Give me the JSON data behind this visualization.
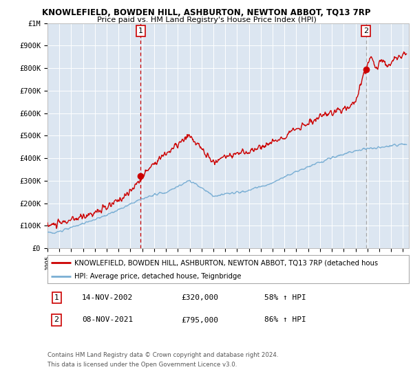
{
  "title": "KNOWLEFIELD, BOWDEN HILL, ASHBURTON, NEWTON ABBOT, TQ13 7RP",
  "subtitle": "Price paid vs. HM Land Registry's House Price Index (HPI)",
  "legend_line1": "KNOWLEFIELD, BOWDEN HILL, ASHBURTON, NEWTON ABBOT, TQ13 7RP (detached hous",
  "legend_line2": "HPI: Average price, detached house, Teignbridge",
  "footer1": "Contains HM Land Registry data © Crown copyright and database right 2024.",
  "footer2": "This data is licensed under the Open Government Licence v3.0.",
  "marker1_date": "14-NOV-2002",
  "marker1_price": "£320,000",
  "marker1_label": "58% ↑ HPI",
  "marker2_date": "08-NOV-2021",
  "marker2_price": "£795,000",
  "marker2_label": "86% ↑ HPI",
  "marker1_x": 2002.87,
  "marker1_y": 320000,
  "marker2_x": 2021.87,
  "marker2_y": 795000,
  "background_color": "#dce6f1",
  "red_color": "#cc0000",
  "blue_color": "#7aafd4",
  "ylim": [
    0,
    1000000
  ],
  "xlim": [
    1995,
    2025.5
  ],
  "yticks": [
    0,
    100000,
    200000,
    300000,
    400000,
    500000,
    600000,
    700000,
    800000,
    900000,
    1000000
  ],
  "ylabels": [
    "£0",
    "£100K",
    "£200K",
    "£300K",
    "£400K",
    "£500K",
    "£600K",
    "£700K",
    "£800K",
    "£900K",
    "£1M"
  ]
}
